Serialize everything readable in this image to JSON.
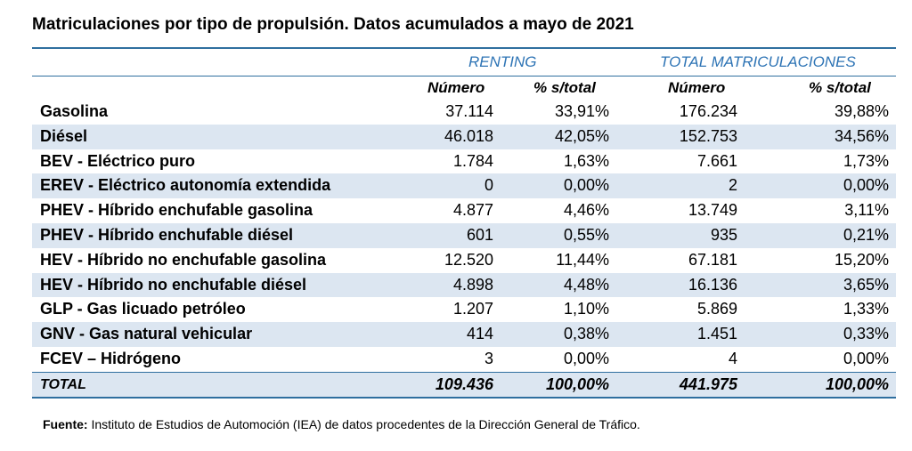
{
  "title": "Matriculaciones por tipo de propulsión. Datos acumulados a mayo de 2021",
  "chart_data": {
    "type": "table",
    "groups": [
      "RENTING",
      "TOTAL MATRICULACIONES"
    ],
    "subheaders": [
      "Número",
      "% s/total",
      "Número",
      "% s/total"
    ],
    "rows": [
      {
        "label": "Gasolina",
        "cells": [
          "37.114",
          "33,91%",
          "176.234",
          "39,88%"
        ]
      },
      {
        "label": "Diésel",
        "cells": [
          "46.018",
          "42,05%",
          "152.753",
          "34,56%"
        ]
      },
      {
        "label": "BEV - Eléctrico puro",
        "cells": [
          "1.784",
          "1,63%",
          "7.661",
          "1,73%"
        ]
      },
      {
        "label": "EREV - Eléctrico autonomía extendida",
        "cells": [
          "0",
          "0,00%",
          "2",
          "0,00%"
        ]
      },
      {
        "label": "PHEV - Híbrido enchufable gasolina",
        "cells": [
          "4.877",
          "4,46%",
          "13.749",
          "3,11%"
        ]
      },
      {
        "label": "PHEV - Híbrido enchufable diésel",
        "cells": [
          "601",
          "0,55%",
          "935",
          "0,21%"
        ]
      },
      {
        "label": "HEV - Híbrido no enchufable gasolina",
        "cells": [
          "12.520",
          "11,44%",
          "67.181",
          "15,20%"
        ]
      },
      {
        "label": "HEV - Híbrido no enchufable diésel",
        "cells": [
          "4.898",
          "4,48%",
          "16.136",
          "3,65%"
        ]
      },
      {
        "label": "GLP - Gas licuado petróleo",
        "cells": [
          "1.207",
          "1,10%",
          "5.869",
          "1,33%"
        ]
      },
      {
        "label": "GNV - Gas natural vehicular",
        "cells": [
          "414",
          "0,38%",
          "1.451",
          "0,33%"
        ]
      },
      {
        "label": "FCEV – Hidrógeno",
        "cells": [
          "3",
          "0,00%",
          "4",
          "0,00%"
        ]
      }
    ],
    "total": {
      "label": "TOTAL",
      "cells": [
        "109.436",
        "100,00%",
        "441.975",
        "100,00%"
      ]
    }
  },
  "source": {
    "label": "Fuente:",
    "text": " Instituto de Estudios de Automoción (IEA) de datos procedentes de la Dirección General de Tráfico."
  },
  "colors": {
    "accent": "#2e74b5",
    "band": "#dce6f1",
    "rule": "#2f6f9f"
  }
}
